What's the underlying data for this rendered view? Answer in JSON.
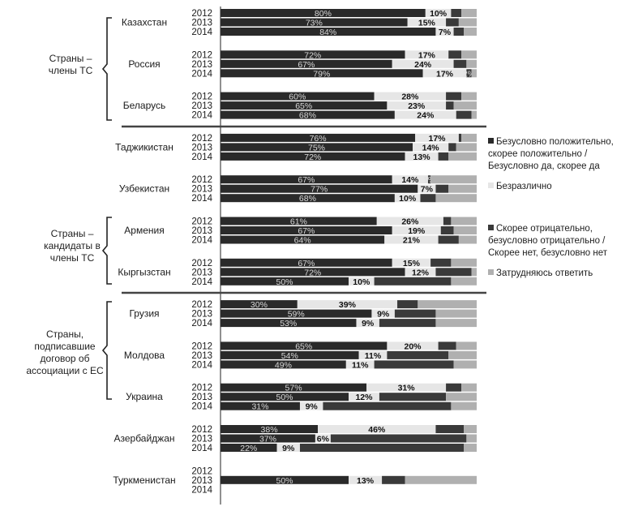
{
  "chart_data": {
    "type": "bar",
    "orientation": "horizontal",
    "stacked": true,
    "normalized_to": 100,
    "years": [
      "2012",
      "2013",
      "2014"
    ],
    "series": [
      {
        "name": "Безусловно положительно, скорее положительно / Безусловно да, скорее да",
        "color": "#2a2a2a"
      },
      {
        "name": "Безразлично",
        "color": "#e6e6e6"
      },
      {
        "name": "Скорее отрицательно, безусловно отрицательно / Скорее нет, безусловно нет",
        "color": "#3a3a3a"
      },
      {
        "name": "Затрудняюсь ответить",
        "color": "#b0b0b0"
      }
    ],
    "groups": [
      {
        "label": "Страны –\nчлены ТС",
        "countries": [
          "Казахстан",
          "Россия",
          "Беларусь"
        ]
      },
      {
        "label": "Страны –\nкандидаты в\nчлены ТС",
        "countries": [
          "Таджикистан",
          "Узбекистан",
          "Армения",
          "Кыргызстан"
        ]
      },
      {
        "label": "Страны,\nподписавшие\nдоговор об\nассоциации с ЕС",
        "countries": [
          "Грузия",
          "Молдова",
          "Украина"
        ]
      },
      {
        "label": "",
        "countries": [
          "Азербайджан",
          "Туркменистан"
        ]
      }
    ],
    "countries": [
      {
        "name": "Казахстан",
        "rows": [
          {
            "year": "2012",
            "values": [
              80,
              10,
              4,
              6
            ],
            "labels": [
              "80%",
              "10%",
              "",
              ""
            ]
          },
          {
            "year": "2013",
            "values": [
              73,
              15,
              5,
              7
            ],
            "labels": [
              "73%",
              "15%",
              "",
              ""
            ]
          },
          {
            "year": "2014",
            "values": [
              84,
              7,
              4,
              5
            ],
            "labels": [
              "84%",
              "7%",
              "",
              ""
            ]
          }
        ]
      },
      {
        "name": "Россия",
        "rows": [
          {
            "year": "2012",
            "values": [
              72,
              17,
              5,
              6
            ],
            "labels": [
              "72%",
              "17%",
              "",
              ""
            ]
          },
          {
            "year": "2013",
            "values": [
              67,
              24,
              5,
              4
            ],
            "labels": [
              "67%",
              "24%",
              "",
              ""
            ]
          },
          {
            "year": "2014",
            "values": [
              79,
              17,
              2,
              2
            ],
            "labels": [
              "79%",
              "17%",
              "2%",
              ""
            ]
          }
        ]
      },
      {
        "name": "Беларусь",
        "rows": [
          {
            "year": "2012",
            "values": [
              60,
              28,
              6,
              6
            ],
            "labels": [
              "60%",
              "28%",
              "",
              ""
            ]
          },
          {
            "year": "2013",
            "values": [
              65,
              23,
              3,
              9
            ],
            "labels": [
              "65%",
              "23%",
              "",
              ""
            ]
          },
          {
            "year": "2014",
            "values": [
              68,
              24,
              6,
              2
            ],
            "labels": [
              "68%",
              "24%",
              "",
              ""
            ]
          }
        ]
      },
      {
        "name": "Таджикистан",
        "rows": [
          {
            "year": "2012",
            "values": [
              76,
              17,
              1,
              6
            ],
            "labels": [
              "76%",
              "17%",
              "",
              ""
            ]
          },
          {
            "year": "2013",
            "values": [
              75,
              14,
              3,
              8
            ],
            "labels": [
              "75%",
              "14%",
              "",
              ""
            ]
          },
          {
            "year": "2014",
            "values": [
              72,
              13,
              4,
              11
            ],
            "labels": [
              "72%",
              "13%",
              "",
              ""
            ]
          }
        ]
      },
      {
        "name": "Узбекистан",
        "rows": [
          {
            "year": "2012",
            "values": [
              67,
              14,
              1,
              18
            ],
            "labels": [
              "67%",
              "14%",
              "1%",
              ""
            ]
          },
          {
            "year": "2013",
            "values": [
              77,
              7,
              5,
              11
            ],
            "labels": [
              "77%",
              "7%",
              "",
              ""
            ]
          },
          {
            "year": "2014",
            "values": [
              68,
              10,
              6,
              16
            ],
            "labels": [
              "68%",
              "10%",
              "",
              ""
            ]
          }
        ]
      },
      {
        "name": "Армения",
        "rows": [
          {
            "year": "2012",
            "values": [
              61,
              26,
              3,
              10
            ],
            "labels": [
              "61%",
              "26%",
              "",
              ""
            ]
          },
          {
            "year": "2013",
            "values": [
              67,
              19,
              5,
              9
            ],
            "labels": [
              "67%",
              "19%",
              "",
              ""
            ]
          },
          {
            "year": "2014",
            "values": [
              64,
              21,
              8,
              7
            ],
            "labels": [
              "64%",
              "21%",
              "",
              ""
            ]
          }
        ]
      },
      {
        "name": "Кыргызстан",
        "rows": [
          {
            "year": "2012",
            "values": [
              67,
              15,
              8,
              10
            ],
            "labels": [
              "67%",
              "15%",
              "",
              ""
            ]
          },
          {
            "year": "2013",
            "values": [
              72,
              12,
              14,
              2
            ],
            "labels": [
              "72%",
              "12%",
              "",
              ""
            ]
          },
          {
            "year": "2014",
            "values": [
              50,
              10,
              30,
              10
            ],
            "labels": [
              "50%",
              "10%",
              "",
              ""
            ]
          }
        ]
      },
      {
        "name": "Грузия",
        "rows": [
          {
            "year": "2012",
            "values": [
              30,
              39,
              8,
              23
            ],
            "labels": [
              "30%",
              "39%",
              "",
              ""
            ]
          },
          {
            "year": "2013",
            "values": [
              59,
              9,
              16,
              16
            ],
            "labels": [
              "59%",
              "9%",
              "",
              ""
            ]
          },
          {
            "year": "2014",
            "values": [
              53,
              9,
              22,
              16
            ],
            "labels": [
              "53%",
              "9%",
              "",
              ""
            ]
          }
        ]
      },
      {
        "name": "Молдова",
        "rows": [
          {
            "year": "2012",
            "values": [
              65,
              20,
              7,
              8
            ],
            "labels": [
              "65%",
              "20%",
              "",
              ""
            ]
          },
          {
            "year": "2013",
            "values": [
              54,
              11,
              24,
              11
            ],
            "labels": [
              "54%",
              "11%",
              "",
              ""
            ]
          },
          {
            "year": "2014",
            "values": [
              49,
              11,
              31,
              9
            ],
            "labels": [
              "49%",
              "11%",
              "",
              ""
            ]
          }
        ]
      },
      {
        "name": "Украина",
        "rows": [
          {
            "year": "2012",
            "values": [
              57,
              31,
              6,
              6
            ],
            "labels": [
              "57%",
              "31%",
              "",
              ""
            ]
          },
          {
            "year": "2013",
            "values": [
              50,
              12,
              26,
              12
            ],
            "labels": [
              "50%",
              "12%",
              "",
              ""
            ]
          },
          {
            "year": "2014",
            "values": [
              31,
              9,
              50,
              10
            ],
            "labels": [
              "31%",
              "9%",
              "",
              ""
            ]
          }
        ]
      },
      {
        "name": "Азербайджан",
        "rows": [
          {
            "year": "2012",
            "values": [
              38,
              46,
              11,
              5
            ],
            "labels": [
              "38%",
              "46%",
              "",
              ""
            ]
          },
          {
            "year": "2013",
            "values": [
              37,
              6,
              53,
              4
            ],
            "labels": [
              "37%",
              "6%",
              "",
              ""
            ]
          },
          {
            "year": "2014",
            "values": [
              22,
              9,
              64,
              5
            ],
            "labels": [
              "22%",
              "9%",
              "",
              ""
            ]
          }
        ]
      },
      {
        "name": "Туркменистан",
        "rows": [
          {
            "year": "2012",
            "values": [],
            "labels": []
          },
          {
            "year": "2013",
            "values": [
              50,
              13,
              9,
              28
            ],
            "labels": [
              "50%",
              "13%",
              "",
              ""
            ]
          },
          {
            "year": "2014",
            "values": [],
            "labels": []
          }
        ]
      }
    ]
  }
}
